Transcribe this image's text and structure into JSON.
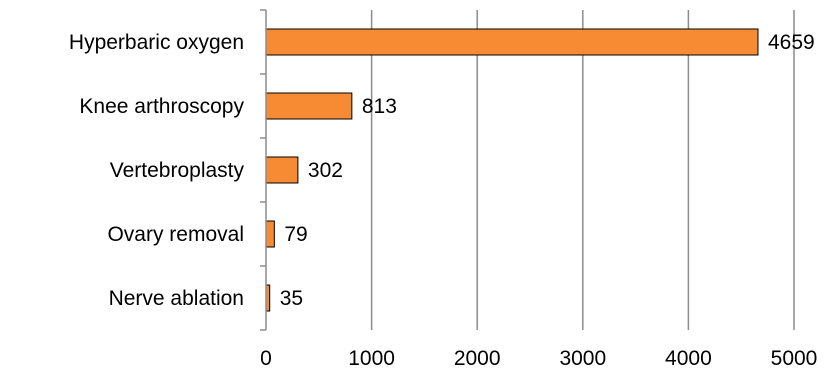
{
  "chart_data": {
    "type": "bar",
    "orientation": "horizontal",
    "categories": [
      "Hyperbaric oxygen",
      "Knee arthroscopy",
      "Vertebroplasty",
      "Ovary removal",
      "Nerve ablation"
    ],
    "values": [
      4659,
      813,
      302,
      79,
      35
    ],
    "data_labels": [
      "4659",
      "813",
      "302",
      "79",
      "35"
    ],
    "x_ticks": [
      "0",
      "1000",
      "2000",
      "3000",
      "4000",
      "5000"
    ],
    "xlim": [
      0,
      5000
    ],
    "grid": "vertical",
    "legend": "none",
    "title": "",
    "xlabel": "",
    "ylabel": "",
    "bar_color": "#F68B33",
    "bar_edge_color": "#000000",
    "grid_color": "#8C8C8C"
  }
}
